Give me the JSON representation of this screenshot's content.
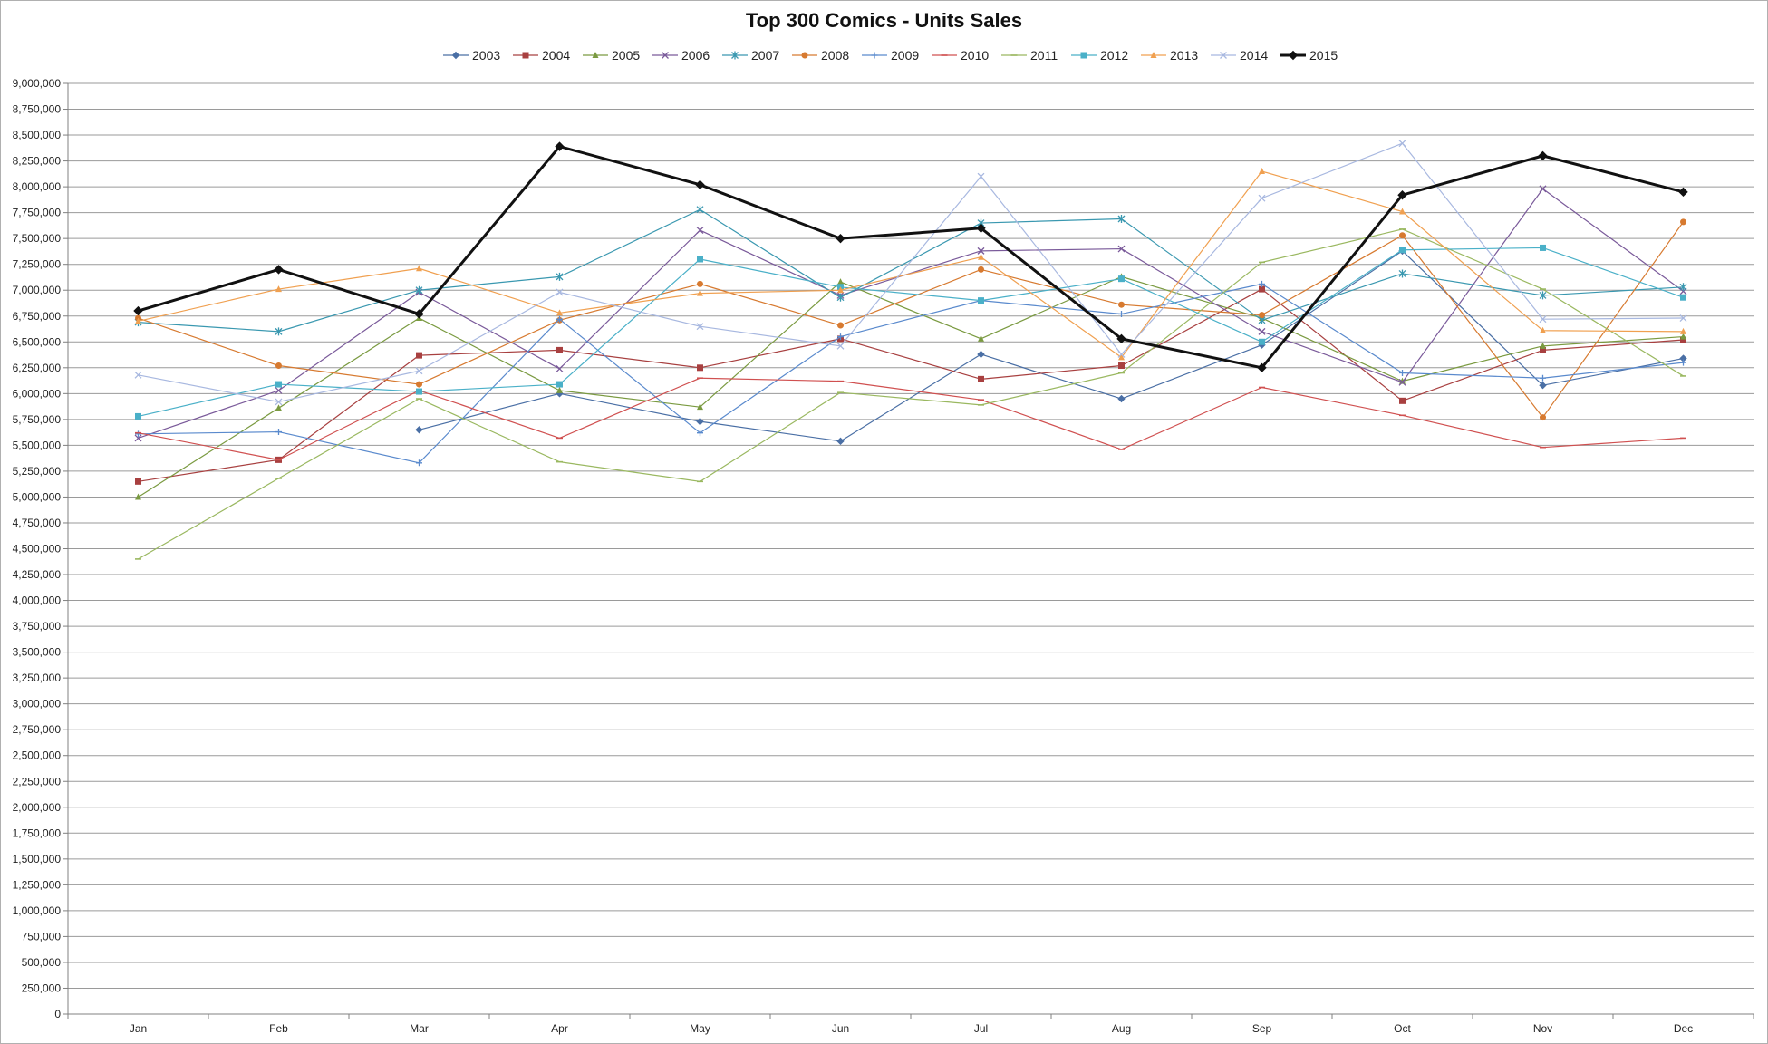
{
  "chart_data": {
    "type": "line",
    "title": "Top 300 Comics - Units Sales",
    "xlabel": "",
    "ylabel": "",
    "categories": [
      "Jan",
      "Feb",
      "Mar",
      "Apr",
      "May",
      "Jun",
      "Jul",
      "Aug",
      "Sep",
      "Oct",
      "Nov",
      "Dec"
    ],
    "ylim": [
      0,
      9000000
    ],
    "ytick_step": 250000,
    "ytick_labels": [
      "0",
      "250,000",
      "500,000",
      "750,000",
      "1,000,000",
      "1,250,000",
      "1,500,000",
      "1,750,000",
      "2,000,000",
      "2,250,000",
      "2,500,000",
      "2,750,000",
      "3,000,000",
      "3,250,000",
      "3,500,000",
      "3,750,000",
      "4,000,000",
      "4,250,000",
      "4,500,000",
      "4,750,000",
      "5,000,000",
      "5,250,000",
      "5,500,000",
      "5,750,000",
      "6,000,000",
      "6,250,000",
      "6,500,000",
      "6,750,000",
      "7,000,000",
      "7,250,000",
      "7,500,000",
      "7,750,000",
      "8,000,000",
      "8,250,000",
      "8,500,000",
      "8,750,000",
      "9,000,000"
    ],
    "grid": true,
    "legend_position": "top",
    "series": [
      {
        "name": "2003",
        "color": "#4a6fa5",
        "marker": "diamond",
        "values": [
          null,
          null,
          5650000,
          6000000,
          5730000,
          5540000,
          6380000,
          5950000,
          6470000,
          7380000,
          6080000,
          6340000
        ]
      },
      {
        "name": "2004",
        "color": "#a84040",
        "marker": "square",
        "values": [
          5150000,
          5360000,
          6370000,
          6420000,
          6250000,
          6530000,
          6140000,
          6270000,
          7010000,
          5930000,
          6420000,
          6520000
        ]
      },
      {
        "name": "2005",
        "color": "#7a9a40",
        "marker": "triangle",
        "values": [
          5000000,
          5860000,
          6730000,
          6030000,
          5870000,
          7080000,
          6530000,
          7130000,
          6730000,
          6120000,
          6460000,
          6550000
        ]
      },
      {
        "name": "2006",
        "color": "#7a5a9a",
        "marker": "x",
        "values": [
          5570000,
          6030000,
          6980000,
          6240000,
          7580000,
          6950000,
          7380000,
          7400000,
          6600000,
          6110000,
          7980000,
          6990000
        ]
      },
      {
        "name": "2007",
        "color": "#3a98b0",
        "marker": "star",
        "values": [
          6690000,
          6600000,
          7000000,
          7130000,
          7780000,
          6930000,
          7650000,
          7690000,
          6710000,
          7160000,
          6950000,
          7030000
        ]
      },
      {
        "name": "2008",
        "color": "#d77a30",
        "marker": "circle",
        "values": [
          6730000,
          6270000,
          6090000,
          6710000,
          7060000,
          6660000,
          7200000,
          6860000,
          6760000,
          7530000,
          5770000,
          7660000
        ]
      },
      {
        "name": "2009",
        "color": "#5a8acd",
        "marker": "plus",
        "values": [
          5610000,
          5630000,
          5330000,
          6720000,
          5620000,
          6550000,
          6900000,
          6770000,
          7060000,
          6200000,
          6150000,
          6300000
        ]
      },
      {
        "name": "2010",
        "color": "#d05050",
        "marker": "dash",
        "values": [
          5620000,
          5360000,
          6030000,
          5570000,
          6150000,
          6120000,
          5940000,
          5460000,
          6060000,
          5790000,
          5480000,
          5570000
        ]
      },
      {
        "name": "2011",
        "color": "#9ab860",
        "marker": "dash",
        "values": [
          4400000,
          5180000,
          5950000,
          5340000,
          5150000,
          6010000,
          5890000,
          6200000,
          7270000,
          7590000,
          7010000,
          6170000
        ]
      },
      {
        "name": "2012",
        "color": "#4ab0c8",
        "marker": "square",
        "values": [
          5780000,
          6090000,
          6020000,
          6090000,
          7300000,
          7030000,
          6900000,
          7110000,
          6500000,
          7390000,
          7410000,
          6930000
        ]
      },
      {
        "name": "2013",
        "color": "#f0a050",
        "marker": "triangle",
        "values": [
          6700000,
          7010000,
          7210000,
          6780000,
          6970000,
          7000000,
          7320000,
          6350000,
          8150000,
          7760000,
          6610000,
          6600000
        ]
      },
      {
        "name": "2014",
        "color": "#a8b8e0",
        "marker": "x",
        "values": [
          6180000,
          5920000,
          6220000,
          6980000,
          6650000,
          6460000,
          8100000,
          6380000,
          7890000,
          8420000,
          6720000,
          6730000
        ]
      },
      {
        "name": "2015",
        "color": "#111111",
        "marker": "diamond",
        "bold": true,
        "values": [
          6800000,
          7200000,
          6770000,
          8390000,
          8020000,
          7500000,
          7600000,
          6530000,
          6250000,
          7920000,
          8300000,
          7950000
        ]
      }
    ]
  }
}
